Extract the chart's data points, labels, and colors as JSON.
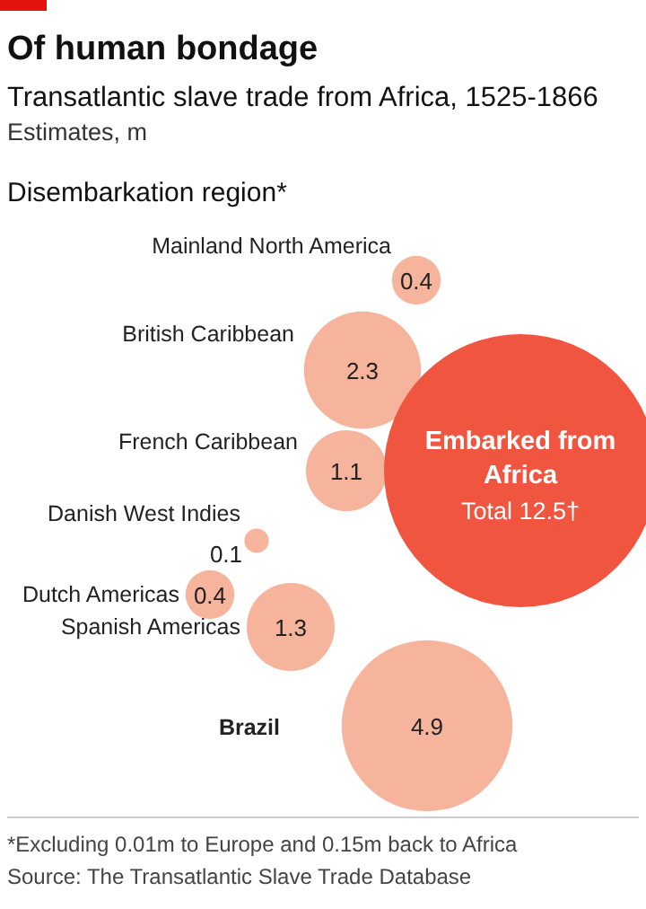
{
  "chart_data": {
    "type": "other",
    "title": "Of human bondage",
    "subtitle": "Transatlantic slave trade from Africa, 1525-1866",
    "ylabel": "Estimates, m",
    "legend_title": "Disembarkation region*",
    "categories": [
      "Mainland North America",
      "British Caribbean",
      "French Caribbean",
      "Danish West Indies",
      "Dutch Americas",
      "Spanish Americas",
      "Brazil",
      "Embarked from Africa"
    ],
    "values": [
      0.4,
      2.3,
      1.1,
      0.1,
      0.4,
      1.3,
      4.9,
      12.5
    ],
    "value_labels": [
      "0.4",
      "2.3",
      "1.1",
      "0.1",
      "0.4",
      "1.3",
      "4.9",
      "Total 12.5†"
    ],
    "colors": [
      "#f7b49c",
      "#f7b49c",
      "#f7b49c",
      "#f7b49c",
      "#f7b49c",
      "#f7b49c",
      "#f7b49c",
      "#f0553f"
    ],
    "annotations": [
      "*Excluding 0.01m to Europe and 0.15m back to Africa",
      "Source: The Transatlantic Slave Trade Database"
    ]
  }
}
